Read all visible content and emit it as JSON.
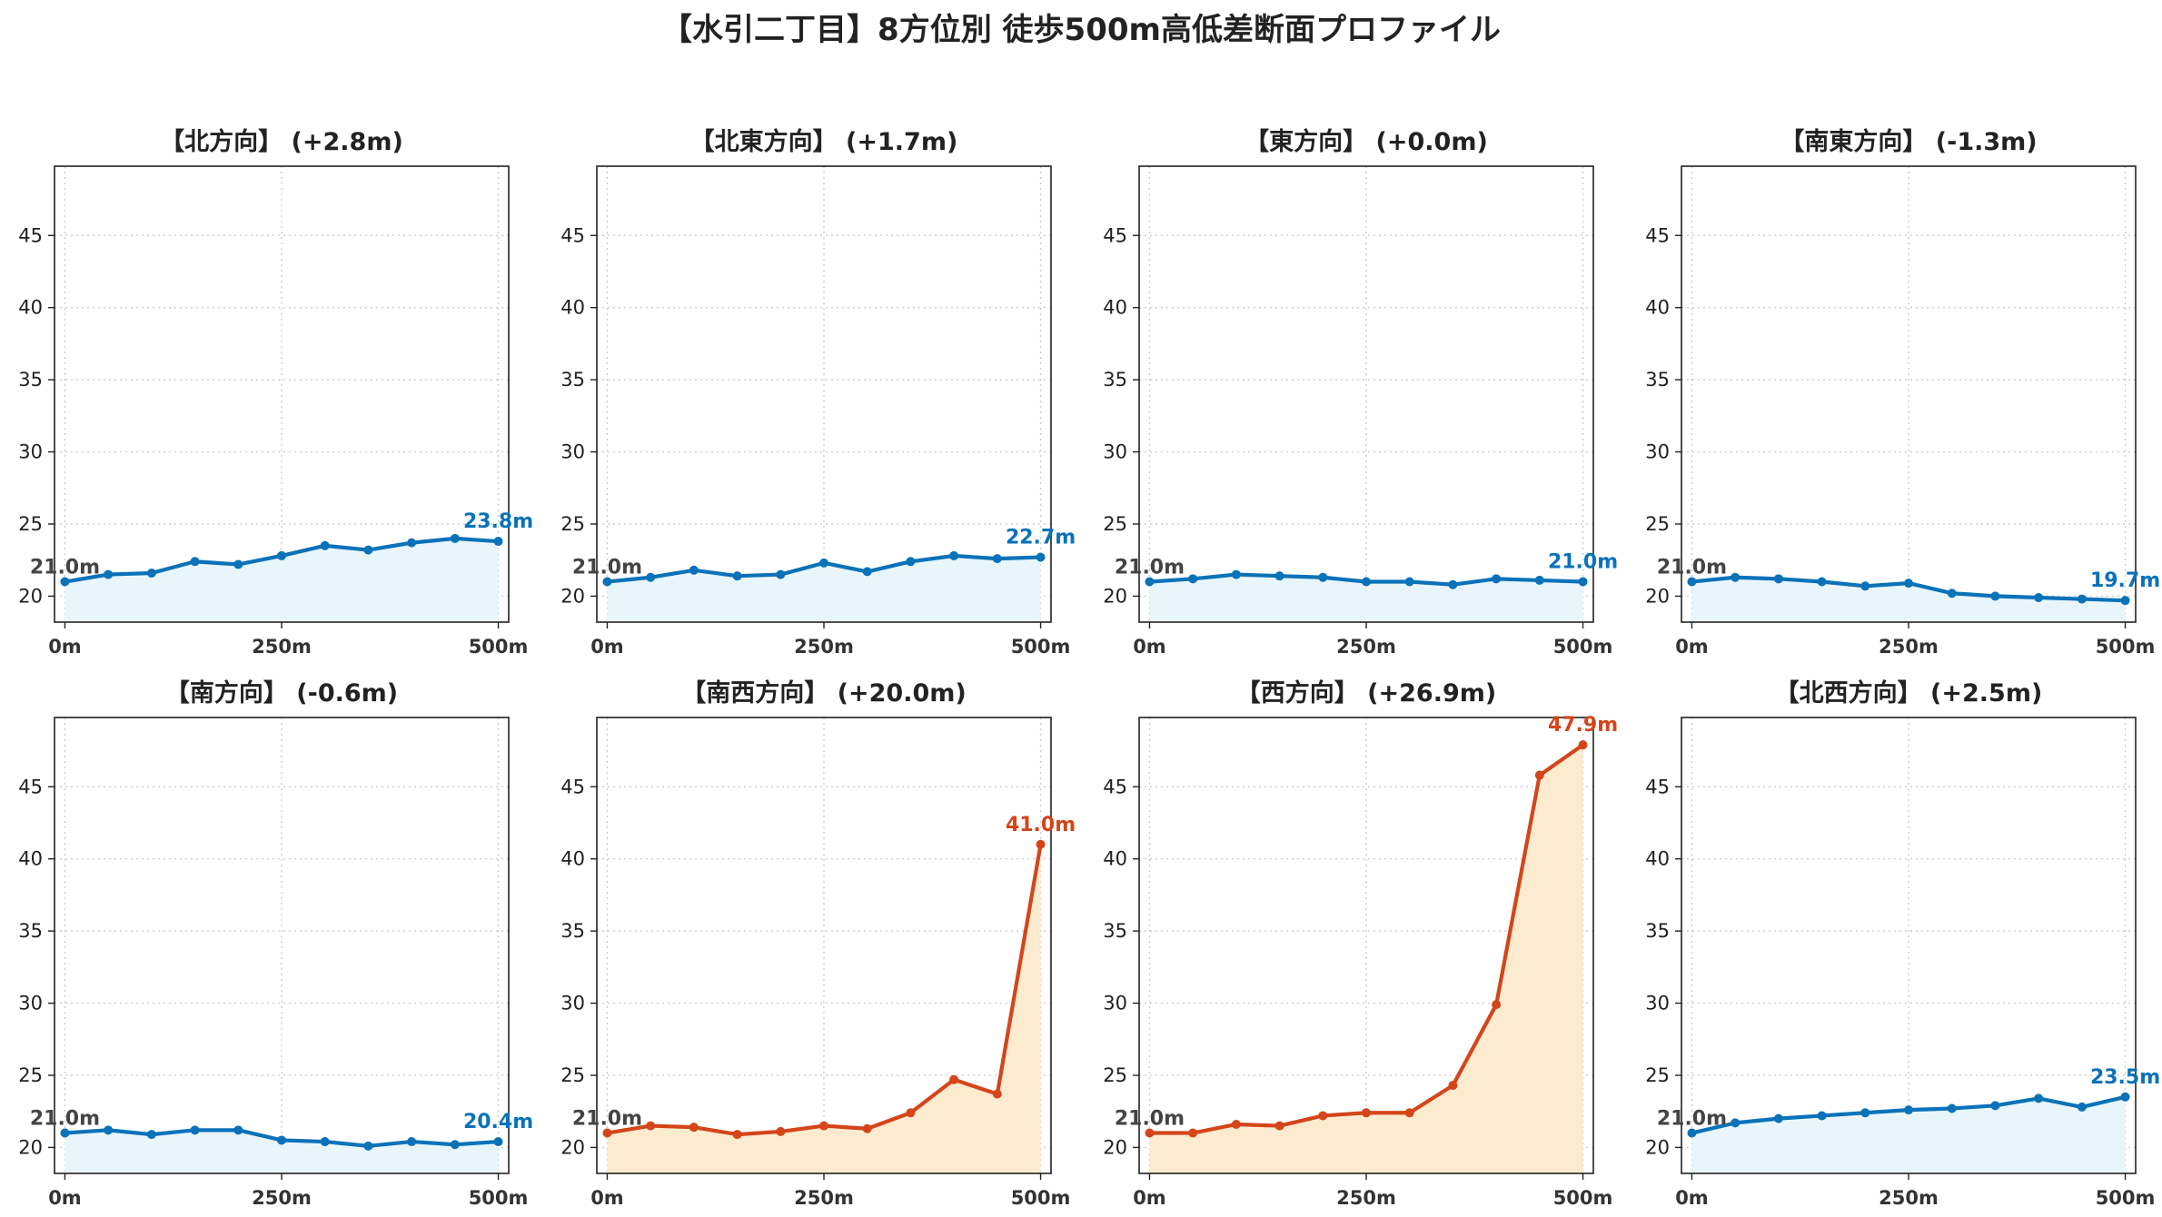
{
  "figure_title": "【水引二丁目】8方位別 徒歩500m高低差断面プロファイル",
  "colors": {
    "flat_line": "#0a72b8",
    "flat_fill": "#e8f6fb",
    "steep_line": "#d4451a",
    "steep_fill": "#fdebd0",
    "label_start": "#444444"
  },
  "chart_data": [
    {
      "type": "line",
      "title": "【北方向】 (+2.8m)",
      "color": "flat",
      "x": [
        0,
        50,
        100,
        150,
        200,
        250,
        300,
        350,
        400,
        450,
        500
      ],
      "values": [
        21.0,
        21.5,
        21.6,
        22.4,
        22.2,
        22.8,
        23.5,
        23.2,
        23.7,
        24.0,
        23.8
      ],
      "start_label": "21.0m",
      "end_label": "23.8m",
      "xticks": [
        "0m",
        "250m",
        "500m"
      ],
      "yticks": [
        20,
        25,
        30,
        35,
        40,
        45
      ],
      "ylim": [
        18.2,
        49.8
      ],
      "xlim": [
        -12,
        512
      ],
      "grid": true
    },
    {
      "type": "line",
      "title": "【北東方向】 (+1.7m)",
      "color": "flat",
      "x": [
        0,
        50,
        100,
        150,
        200,
        250,
        300,
        350,
        400,
        450,
        500
      ],
      "values": [
        21.0,
        21.3,
        21.8,
        21.4,
        21.5,
        22.3,
        21.7,
        22.4,
        22.8,
        22.6,
        22.7
      ],
      "start_label": "21.0m",
      "end_label": "22.7m",
      "xticks": [
        "0m",
        "250m",
        "500m"
      ],
      "yticks": [
        20,
        25,
        30,
        35,
        40,
        45
      ],
      "ylim": [
        18.2,
        49.8
      ],
      "xlim": [
        -12,
        512
      ],
      "grid": true
    },
    {
      "type": "line",
      "title": "【東方向】 (+0.0m)",
      "color": "flat",
      "x": [
        0,
        50,
        100,
        150,
        200,
        250,
        300,
        350,
        400,
        450,
        500
      ],
      "values": [
        21.0,
        21.2,
        21.5,
        21.4,
        21.3,
        21.0,
        21.0,
        20.8,
        21.2,
        21.1,
        21.0
      ],
      "start_label": "21.0m",
      "end_label": "21.0m",
      "xticks": [
        "0m",
        "250m",
        "500m"
      ],
      "yticks": [
        20,
        25,
        30,
        35,
        40,
        45
      ],
      "ylim": [
        18.2,
        49.8
      ],
      "xlim": [
        -12,
        512
      ],
      "grid": true
    },
    {
      "type": "line",
      "title": "【南東方向】 (-1.3m)",
      "color": "flat",
      "x": [
        0,
        50,
        100,
        150,
        200,
        250,
        300,
        350,
        400,
        450,
        500
      ],
      "values": [
        21.0,
        21.3,
        21.2,
        21.0,
        20.7,
        20.9,
        20.2,
        20.0,
        19.9,
        19.8,
        19.7
      ],
      "start_label": "21.0m",
      "end_label": "19.7m",
      "xticks": [
        "0m",
        "250m",
        "500m"
      ],
      "yticks": [
        20,
        25,
        30,
        35,
        40,
        45
      ],
      "ylim": [
        18.2,
        49.8
      ],
      "xlim": [
        -12,
        512
      ],
      "grid": true
    },
    {
      "type": "line",
      "title": "【南方向】 (-0.6m)",
      "color": "flat",
      "x": [
        0,
        50,
        100,
        150,
        200,
        250,
        300,
        350,
        400,
        450,
        500
      ],
      "values": [
        21.0,
        21.2,
        20.9,
        21.2,
        21.2,
        20.5,
        20.4,
        20.1,
        20.4,
        20.2,
        20.4
      ],
      "start_label": "21.0m",
      "end_label": "20.4m",
      "xticks": [
        "0m",
        "250m",
        "500m"
      ],
      "yticks": [
        20,
        25,
        30,
        35,
        40,
        45
      ],
      "ylim": [
        18.2,
        49.8
      ],
      "xlim": [
        -12,
        512
      ],
      "grid": true
    },
    {
      "type": "line",
      "title": "【南西方向】 (+20.0m)",
      "color": "steep",
      "x": [
        0,
        50,
        100,
        150,
        200,
        250,
        300,
        350,
        400,
        450,
        500
      ],
      "values": [
        21.0,
        21.5,
        21.4,
        20.9,
        21.1,
        21.5,
        21.3,
        22.4,
        24.7,
        23.7,
        41.0
      ],
      "start_label": "21.0m",
      "end_label": "41.0m",
      "xticks": [
        "0m",
        "250m",
        "500m"
      ],
      "yticks": [
        20,
        25,
        30,
        35,
        40,
        45
      ],
      "ylim": [
        18.2,
        49.8
      ],
      "xlim": [
        -12,
        512
      ],
      "grid": true
    },
    {
      "type": "line",
      "title": "【西方向】 (+26.9m)",
      "color": "steep",
      "x": [
        0,
        50,
        100,
        150,
        200,
        250,
        300,
        350,
        400,
        450,
        500
      ],
      "values": [
        21.0,
        21.0,
        21.6,
        21.5,
        22.2,
        22.4,
        22.4,
        24.3,
        29.9,
        45.8,
        47.9
      ],
      "start_label": "21.0m",
      "end_label": "47.9m",
      "xticks": [
        "0m",
        "250m",
        "500m"
      ],
      "yticks": [
        20,
        25,
        30,
        35,
        40,
        45
      ],
      "ylim": [
        18.2,
        49.8
      ],
      "xlim": [
        -12,
        512
      ],
      "grid": true
    },
    {
      "type": "line",
      "title": "【北西方向】 (+2.5m)",
      "color": "flat",
      "x": [
        0,
        50,
        100,
        150,
        200,
        250,
        300,
        350,
        400,
        450,
        500
      ],
      "values": [
        21.0,
        21.7,
        22.0,
        22.2,
        22.4,
        22.6,
        22.7,
        22.9,
        23.4,
        22.8,
        23.5
      ],
      "start_label": "21.0m",
      "end_label": "23.5m",
      "xticks": [
        "0m",
        "250m",
        "500m"
      ],
      "yticks": [
        20,
        25,
        30,
        35,
        40,
        45
      ],
      "ylim": [
        18.2,
        49.8
      ],
      "xlim": [
        -12,
        512
      ],
      "grid": true
    }
  ]
}
